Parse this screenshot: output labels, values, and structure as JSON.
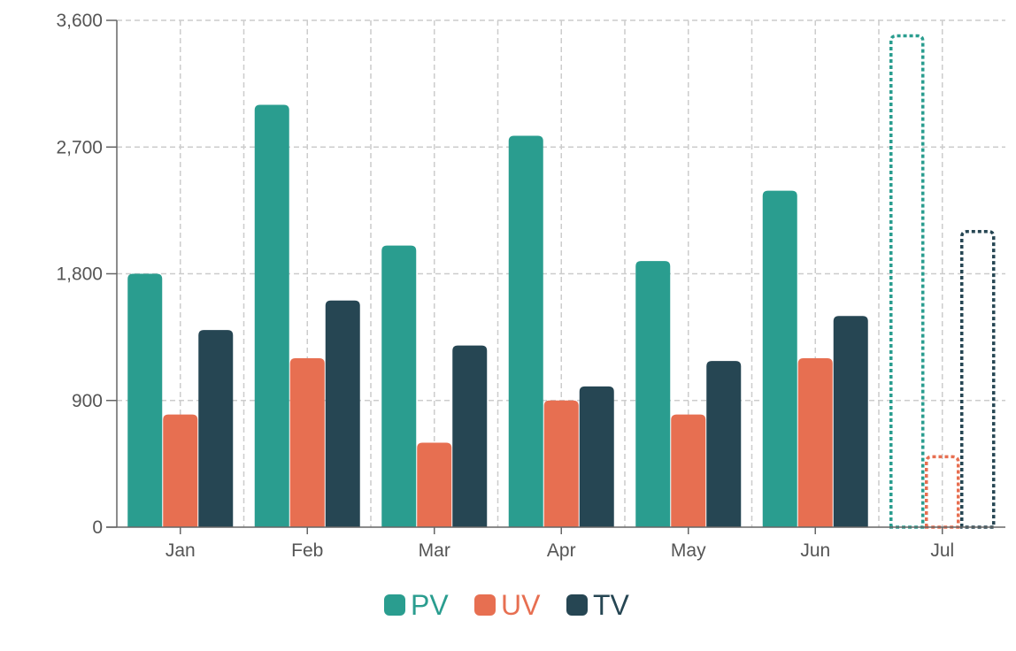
{
  "chart_data": {
    "type": "bar",
    "title": "",
    "xlabel": "",
    "ylabel": "",
    "categories": [
      "Jan",
      "Feb",
      "Mar",
      "Apr",
      "May",
      "Jun",
      "Jul"
    ],
    "ylim": [
      0,
      3600
    ],
    "yticks": [
      0,
      900,
      1800,
      2700,
      3600
    ],
    "ytick_labels": [
      "0",
      "900",
      "1,800",
      "2,700",
      "3,600"
    ],
    "grid": true,
    "legend_position": "bottom",
    "series": [
      {
        "name": "PV",
        "color": "#2a9d8f",
        "values": [
          1800,
          3000,
          2000,
          2780,
          1890,
          2390,
          3490
        ]
      },
      {
        "name": "UV",
        "color": "#e76f51",
        "values": [
          800,
          1200,
          600,
          900,
          800,
          1200,
          500
        ]
      },
      {
        "name": "TV",
        "color": "#264653",
        "values": [
          1400,
          1610,
          1290,
          1000,
          1180,
          1500,
          2100
        ]
      }
    ],
    "dashed_outline_categories": [
      "Jul"
    ]
  }
}
